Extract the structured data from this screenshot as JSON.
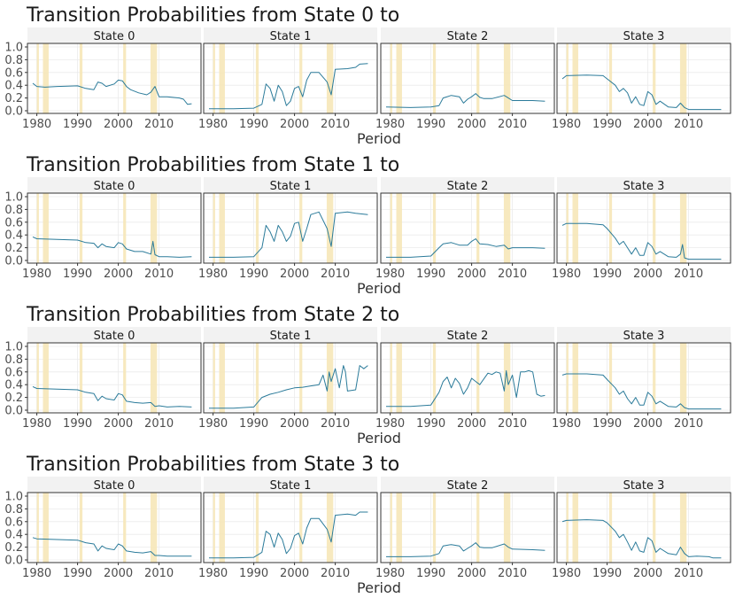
{
  "chart_data": {
    "type": "line",
    "x_axis_title": "Period",
    "x_ticks": [
      1980,
      1990,
      2000,
      2010
    ],
    "x_range": [
      1979,
      2019
    ],
    "y_ticks": [
      0.0,
      0.2,
      0.4,
      0.6,
      0.8,
      1.0
    ],
    "y_tick_labels": [
      "0.0",
      "0.2",
      "0.4",
      "0.6",
      "0.8",
      "1.0"
    ],
    "y_range": [
      0,
      1
    ],
    "grid": true,
    "colors": {
      "line": "#2b7b9a",
      "band": "#f6e7b8",
      "strip": "#f2f2f2",
      "grid": "#ebebeb"
    },
    "shaded_periods": [
      [
        1980.0,
        1980.5
      ],
      [
        1981.5,
        1982.9
      ],
      [
        1990.5,
        1991.2
      ],
      [
        2001.2,
        2001.9
      ],
      [
        2007.9,
        2009.5
      ]
    ],
    "rows": [
      {
        "title": "Transition Probabilities from State 0 to",
        "panels": [
          {
            "label": "State 0",
            "x": [
              1979,
              1980,
              1982,
              1985,
              1990,
              1992,
              1994,
              1995,
              1996,
              1997,
              1999,
              2000,
              2001,
              2002,
              2003,
              2005,
              2007,
              2008,
              2009,
              2010,
              2012,
              2015,
              2016,
              2017,
              2018
            ],
            "y": [
              0.43,
              0.38,
              0.37,
              0.38,
              0.39,
              0.35,
              0.33,
              0.45,
              0.43,
              0.38,
              0.42,
              0.48,
              0.47,
              0.38,
              0.33,
              0.28,
              0.25,
              0.29,
              0.38,
              0.22,
              0.22,
              0.2,
              0.18,
              0.1,
              0.11
            ]
          },
          {
            "label": "State 1",
            "x": [
              1979,
              1985,
              1990,
              1992,
              1993,
              1994,
              1995,
              1996,
              1997,
              1998,
              1999,
              2000,
              2001,
              2002,
              2003,
              2004,
              2006,
              2008,
              2009,
              2010,
              2013,
              2015,
              2016,
              2018
            ],
            "y": [
              0.03,
              0.03,
              0.04,
              0.1,
              0.42,
              0.35,
              0.15,
              0.4,
              0.3,
              0.08,
              0.15,
              0.35,
              0.38,
              0.22,
              0.48,
              0.6,
              0.6,
              0.45,
              0.25,
              0.65,
              0.66,
              0.68,
              0.73,
              0.74
            ]
          },
          {
            "label": "State 2",
            "x": [
              1979,
              1985,
              1990,
              1992,
              1993,
              1995,
              1997,
              1998,
              1999,
              2000,
              2001,
              2002,
              2003,
              2005,
              2008,
              2009,
              2010,
              2015,
              2018
            ],
            "y": [
              0.06,
              0.05,
              0.06,
              0.08,
              0.2,
              0.24,
              0.22,
              0.12,
              0.18,
              0.22,
              0.27,
              0.21,
              0.19,
              0.19,
              0.24,
              0.2,
              0.16,
              0.16,
              0.15
            ]
          },
          {
            "label": "State 3",
            "x": [
              1979,
              1980,
              1985,
              1989,
              1990,
              1992,
              1993,
              1994,
              1995,
              1996,
              1997,
              1998,
              1999,
              2000,
              2001,
              2002,
              2003,
              2005,
              2007,
              2008,
              2009,
              2010,
              2018
            ],
            "y": [
              0.5,
              0.55,
              0.56,
              0.55,
              0.5,
              0.4,
              0.3,
              0.35,
              0.28,
              0.12,
              0.22,
              0.1,
              0.08,
              0.3,
              0.25,
              0.1,
              0.15,
              0.06,
              0.05,
              0.12,
              0.05,
              0.02,
              0.02
            ]
          }
        ]
      },
      {
        "title": "Transition Probabilities from State 1 to",
        "panels": [
          {
            "label": "State 0",
            "x": [
              1979,
              1980,
              1985,
              1990,
              1992,
              1994,
              1995,
              1996,
              1997,
              1999,
              2000,
              2001,
              2002,
              2004,
              2006,
              2008,
              2008.5,
              2009,
              2010,
              2012,
              2015,
              2018
            ],
            "y": [
              0.37,
              0.34,
              0.33,
              0.32,
              0.28,
              0.27,
              0.2,
              0.26,
              0.22,
              0.2,
              0.28,
              0.26,
              0.18,
              0.14,
              0.14,
              0.1,
              0.3,
              0.09,
              0.06,
              0.06,
              0.05,
              0.06
            ]
          },
          {
            "label": "State 1",
            "x": [
              1979,
              1985,
              1990,
              1992,
              1993,
              1994,
              1995,
              1996,
              1997,
              1998,
              1999,
              2000,
              2001,
              2002,
              2003,
              2004,
              2006,
              2008,
              2009,
              2010,
              2013,
              2015,
              2018
            ],
            "y": [
              0.05,
              0.05,
              0.06,
              0.2,
              0.55,
              0.45,
              0.3,
              0.55,
              0.45,
              0.3,
              0.38,
              0.58,
              0.6,
              0.3,
              0.5,
              0.72,
              0.76,
              0.5,
              0.22,
              0.74,
              0.76,
              0.74,
              0.72
            ]
          },
          {
            "label": "State 2",
            "x": [
              1979,
              1985,
              1990,
              1992,
              1993,
              1995,
              1997,
              1999,
              2000,
              2001,
              2002,
              2004,
              2006,
              2008,
              2009,
              2010,
              2015,
              2018
            ],
            "y": [
              0.05,
              0.05,
              0.07,
              0.2,
              0.26,
              0.28,
              0.24,
              0.24,
              0.3,
              0.34,
              0.26,
              0.25,
              0.22,
              0.24,
              0.18,
              0.2,
              0.2,
              0.19
            ]
          },
          {
            "label": "State 3",
            "x": [
              1979,
              1980,
              1985,
              1989,
              1990,
              1992,
              1993,
              1994,
              1995,
              1996,
              1997,
              1998,
              1999,
              2000,
              2001,
              2002,
              2003,
              2005,
              2007,
              2008,
              2008.5,
              2009,
              2010,
              2018
            ],
            "y": [
              0.55,
              0.58,
              0.58,
              0.56,
              0.5,
              0.35,
              0.25,
              0.3,
              0.2,
              0.1,
              0.2,
              0.08,
              0.08,
              0.28,
              0.22,
              0.1,
              0.14,
              0.06,
              0.05,
              0.1,
              0.25,
              0.04,
              0.02,
              0.02
            ]
          }
        ]
      },
      {
        "title": "Transition Probabilities from State 2 to",
        "panels": [
          {
            "label": "State 0",
            "x": [
              1979,
              1980,
              1985,
              1990,
              1992,
              1994,
              1995,
              1996,
              1997,
              1999,
              2000,
              2001,
              2002,
              2004,
              2006,
              2008,
              2009,
              2010,
              2012,
              2015,
              2018
            ],
            "y": [
              0.37,
              0.34,
              0.33,
              0.32,
              0.28,
              0.26,
              0.15,
              0.22,
              0.18,
              0.16,
              0.26,
              0.24,
              0.14,
              0.12,
              0.11,
              0.12,
              0.06,
              0.07,
              0.05,
              0.06,
              0.05
            ]
          },
          {
            "label": "State 1",
            "x": [
              1979,
              1985,
              1990,
              1992,
              1994,
              1996,
              1998,
              2000,
              2002,
              2004,
              2006,
              2007,
              2008,
              2008.5,
              2009,
              2010,
              2011,
              2012,
              2012.5,
              2013,
              2015,
              2016,
              2017,
              2018
            ],
            "y": [
              0.03,
              0.03,
              0.05,
              0.2,
              0.25,
              0.28,
              0.32,
              0.35,
              0.36,
              0.38,
              0.4,
              0.55,
              0.3,
              0.6,
              0.45,
              0.65,
              0.35,
              0.7,
              0.6,
              0.3,
              0.32,
              0.7,
              0.65,
              0.7
            ]
          },
          {
            "label": "State 2",
            "x": [
              1979,
              1985,
              1990,
              1992,
              1993,
              1994,
              1995,
              1996,
              1997,
              1998,
              1999,
              2000,
              2001,
              2002,
              2004,
              2005,
              2006,
              2007,
              2008,
              2008.5,
              2009,
              2010,
              2011,
              2012,
              2013,
              2014,
              2015,
              2016,
              2017,
              2018
            ],
            "y": [
              0.06,
              0.06,
              0.08,
              0.28,
              0.45,
              0.52,
              0.35,
              0.5,
              0.42,
              0.25,
              0.35,
              0.5,
              0.45,
              0.4,
              0.58,
              0.56,
              0.6,
              0.58,
              0.3,
              0.62,
              0.4,
              0.55,
              0.2,
              0.6,
              0.6,
              0.62,
              0.6,
              0.25,
              0.22,
              0.23
            ]
          },
          {
            "label": "State 3",
            "x": [
              1979,
              1980,
              1985,
              1989,
              1990,
              1992,
              1993,
              1994,
              1995,
              1996,
              1997,
              1998,
              1999,
              2000,
              2001,
              2002,
              2003,
              2005,
              2007,
              2008,
              2009,
              2010,
              2018
            ],
            "y": [
              0.55,
              0.57,
              0.57,
              0.55,
              0.48,
              0.35,
              0.25,
              0.3,
              0.18,
              0.1,
              0.2,
              0.08,
              0.08,
              0.28,
              0.22,
              0.1,
              0.14,
              0.06,
              0.05,
              0.1,
              0.04,
              0.02,
              0.02
            ]
          }
        ]
      },
      {
        "title": "Transition Probabilities from State 3 to",
        "panels": [
          {
            "label": "State 0",
            "x": [
              1979,
              1980,
              1985,
              1990,
              1992,
              1994,
              1995,
              1996,
              1997,
              1999,
              2000,
              2001,
              2002,
              2004,
              2006,
              2008,
              2009,
              2010,
              2012,
              2015,
              2018
            ],
            "y": [
              0.35,
              0.33,
              0.32,
              0.31,
              0.27,
              0.25,
              0.14,
              0.22,
              0.18,
              0.16,
              0.25,
              0.22,
              0.14,
              0.12,
              0.11,
              0.13,
              0.07,
              0.07,
              0.06,
              0.06,
              0.06
            ]
          },
          {
            "label": "State 1",
            "x": [
              1979,
              1985,
              1990,
              1992,
              1993,
              1994,
              1995,
              1996,
              1997,
              1998,
              1999,
              2000,
              2001,
              2002,
              2003,
              2004,
              2006,
              2008,
              2009,
              2010,
              2013,
              2015,
              2016,
              2018
            ],
            "y": [
              0.03,
              0.03,
              0.04,
              0.12,
              0.45,
              0.4,
              0.2,
              0.42,
              0.32,
              0.1,
              0.18,
              0.38,
              0.42,
              0.25,
              0.5,
              0.65,
              0.65,
              0.48,
              0.28,
              0.7,
              0.72,
              0.7,
              0.75,
              0.75
            ]
          },
          {
            "label": "State 2",
            "x": [
              1979,
              1985,
              1990,
              1992,
              1993,
              1995,
              1997,
              1998,
              1999,
              2000,
              2001,
              2002,
              2003,
              2005,
              2008,
              2009,
              2010,
              2015,
              2018
            ],
            "y": [
              0.05,
              0.05,
              0.06,
              0.1,
              0.22,
              0.24,
              0.22,
              0.14,
              0.18,
              0.22,
              0.27,
              0.2,
              0.19,
              0.19,
              0.25,
              0.2,
              0.17,
              0.16,
              0.15
            ]
          },
          {
            "label": "State 3",
            "x": [
              1979,
              1980,
              1985,
              1989,
              1990,
              1992,
              1993,
              1994,
              1995,
              1996,
              1997,
              1998,
              1999,
              2000,
              2001,
              2002,
              2003,
              2005,
              2007,
              2008,
              2009,
              2010,
              2012,
              2015,
              2016,
              2018
            ],
            "y": [
              0.6,
              0.62,
              0.63,
              0.62,
              0.58,
              0.45,
              0.35,
              0.4,
              0.28,
              0.15,
              0.28,
              0.14,
              0.12,
              0.35,
              0.3,
              0.12,
              0.18,
              0.1,
              0.08,
              0.2,
              0.1,
              0.05,
              0.06,
              0.05,
              0.03,
              0.03
            ]
          }
        ]
      }
    ]
  }
}
